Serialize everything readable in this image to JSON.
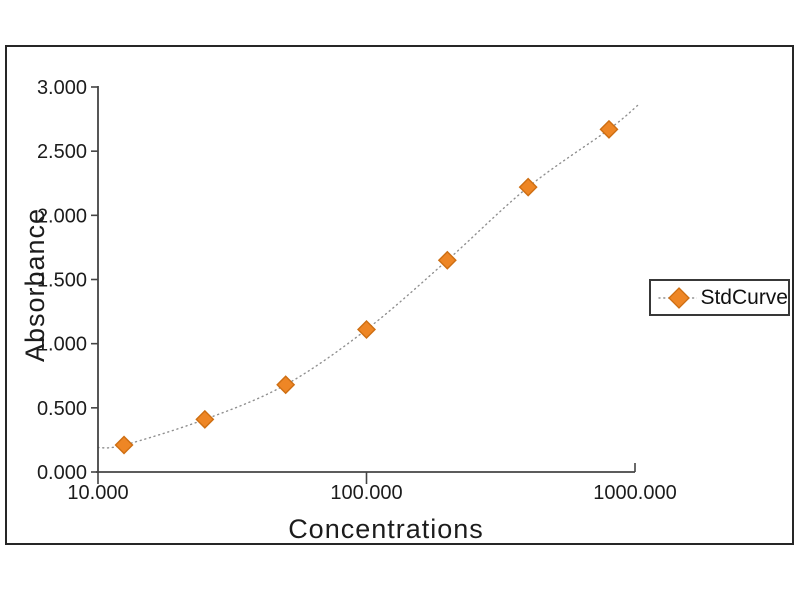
{
  "chart_data": {
    "type": "scatter",
    "title": "",
    "xlabel": "Concentrations",
    "ylabel": "Absorbance",
    "x_scale": "log",
    "xlim": [
      10,
      1000
    ],
    "ylim": [
      0,
      3
    ],
    "grid": false,
    "x_ticks": [
      {
        "value": 10,
        "label": "10.000"
      },
      {
        "value": 100,
        "label": "100.000"
      },
      {
        "value": 1000,
        "label": "1000.000"
      }
    ],
    "y_ticks": [
      {
        "value": 0.0,
        "label": "0.000"
      },
      {
        "value": 0.5,
        "label": "0.500"
      },
      {
        "value": 1.0,
        "label": "1.000"
      },
      {
        "value": 1.5,
        "label": "1.500"
      },
      {
        "value": 2.0,
        "label": "2.000"
      },
      {
        "value": 2.5,
        "label": "2.500"
      },
      {
        "value": 3.0,
        "label": "3.000"
      }
    ],
    "series": [
      {
        "name": "StdCurve",
        "marker": "diamond",
        "marker_color": "#EE8625",
        "marker_edge_color": "#CE6E12",
        "x": [
          12.5,
          25,
          50,
          100,
          200,
          400,
          800
        ],
        "y": [
          0.21,
          0.41,
          0.68,
          1.11,
          1.65,
          2.22,
          2.67
        ]
      }
    ],
    "fit_curve": {
      "style": "dotted",
      "color": "#8F8F8F",
      "start": {
        "x": 10,
        "y": 0.19
      },
      "end": {
        "x": 1040,
        "y": 2.87
      }
    },
    "legend": {
      "position": "right",
      "entries": [
        "StdCurve"
      ]
    }
  },
  "colors": {
    "background": "#FFFFFF",
    "frame_border": "#262626",
    "axis": "#444444",
    "tick_text": "#1C1C1C",
    "curve_dots": "#8F8F8F",
    "marker_fill": "#EE8625",
    "marker_edge": "#CE6E12"
  }
}
